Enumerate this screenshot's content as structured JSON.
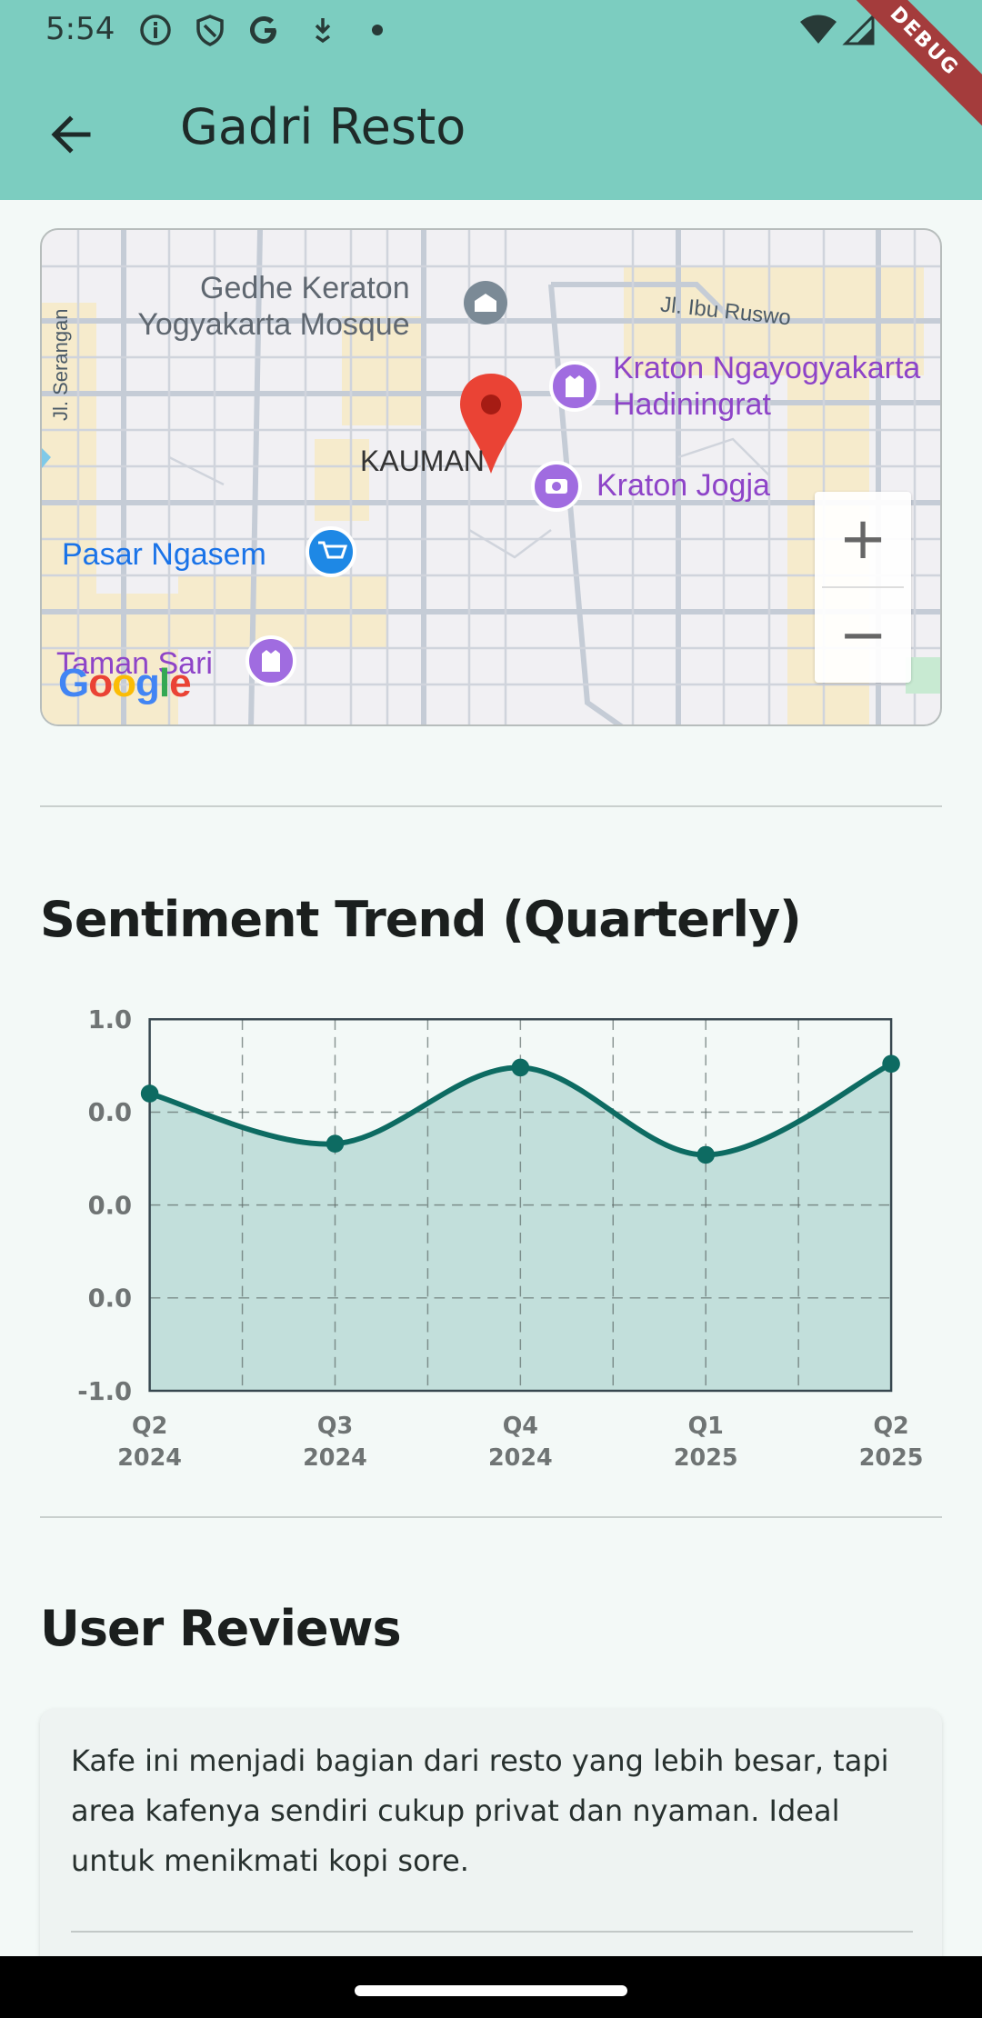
{
  "status_bar": {
    "time": "5:54",
    "left_icons": [
      "info-icon",
      "shield-icon",
      "google-icon",
      "download-icon",
      "dot-icon"
    ],
    "right_icons": [
      "wifi-icon",
      "signal-icon"
    ],
    "debug_label": "DEBUG"
  },
  "app_bar": {
    "title": "Gadri Resto",
    "back_icon": "arrow-back-icon",
    "background": "#7ccdc0"
  },
  "map": {
    "labels": {
      "mosque": "Gedhe Keraton Yogyakarta Mosque",
      "mosque_line1": "Gedhe Keraton",
      "mosque_line2": "Yogyakarta Mosque",
      "kraton_line1": "Kraton Ngayogyakarta",
      "kraton_line2": "Hadiningrat",
      "kraton_jogja": "Kraton Jogja",
      "pasar": "Pasar Ngasem",
      "taman": "Taman Sari",
      "kauman": "KAUMAN",
      "serangan": "Jl. Serangan",
      "ruswo": "Jl. Ibu Ruswo",
      "google": "Google"
    },
    "zoom_in": "+",
    "zoom_out": "−"
  },
  "sentiment": {
    "title": "Sentiment Trend (Quarterly)"
  },
  "chart_data": {
    "type": "area",
    "categories": [
      [
        "Q2",
        "2024"
      ],
      [
        "Q3",
        "2024"
      ],
      [
        "Q4",
        "2024"
      ],
      [
        "Q1",
        "2025"
      ],
      [
        "Q2",
        "2025"
      ]
    ],
    "values": [
      0.6,
      0.33,
      0.74,
      0.27,
      0.76
    ],
    "y_tick_labels": [
      "1.0",
      "0.0",
      "0.0",
      "0.0",
      "-1.0"
    ],
    "ylim": [
      -1.0,
      1.0
    ],
    "grid": true,
    "line_color": "#0d6b62",
    "fill_color": "#c2dfdb"
  },
  "reviews": {
    "title": "User Reviews",
    "items": [
      {
        "text": "Kafe ini menjadi bagian dari resto yang lebih besar, tapi area kafenya sendiri cukup privat dan nyaman. Ideal untuk menikmati kopi sore."
      }
    ]
  }
}
